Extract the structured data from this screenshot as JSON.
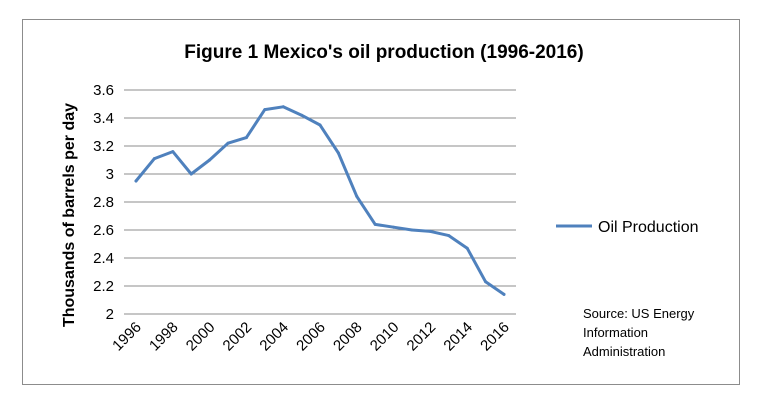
{
  "chart_data": {
    "type": "line",
    "title": "Figure 1 Mexico's oil production (1996-2016)",
    "xlabel": "",
    "ylabel": "Thousands  of  barrels per day",
    "ylim": [
      2,
      3.6
    ],
    "yticks": [
      "2",
      "2.2",
      "2.4",
      "2.6",
      "2.8",
      "3",
      "3.2",
      "3.4",
      "3.6"
    ],
    "xticks": [
      "1996",
      "1998",
      "2000",
      "2002",
      "2004",
      "2006",
      "2008",
      "2010",
      "2012",
      "2014",
      "2016"
    ],
    "grid": "horizontal",
    "legend_position": "right",
    "color": "#4f81bd",
    "series": [
      {
        "name": "Oil Production",
        "x": [
          1996,
          1997,
          1998,
          1999,
          2000,
          2001,
          2002,
          2003,
          2004,
          2005,
          2006,
          2007,
          2008,
          2009,
          2010,
          2011,
          2012,
          2013,
          2014,
          2015,
          2016
        ],
        "values": [
          2.95,
          3.11,
          3.16,
          3.0,
          3.1,
          3.22,
          3.26,
          3.46,
          3.48,
          3.42,
          3.35,
          3.15,
          2.84,
          2.64,
          2.62,
          2.6,
          2.59,
          2.56,
          2.47,
          2.23,
          2.14
        ]
      }
    ],
    "source_note": [
      "Source: US Energy",
      "Information",
      "Administration"
    ]
  }
}
